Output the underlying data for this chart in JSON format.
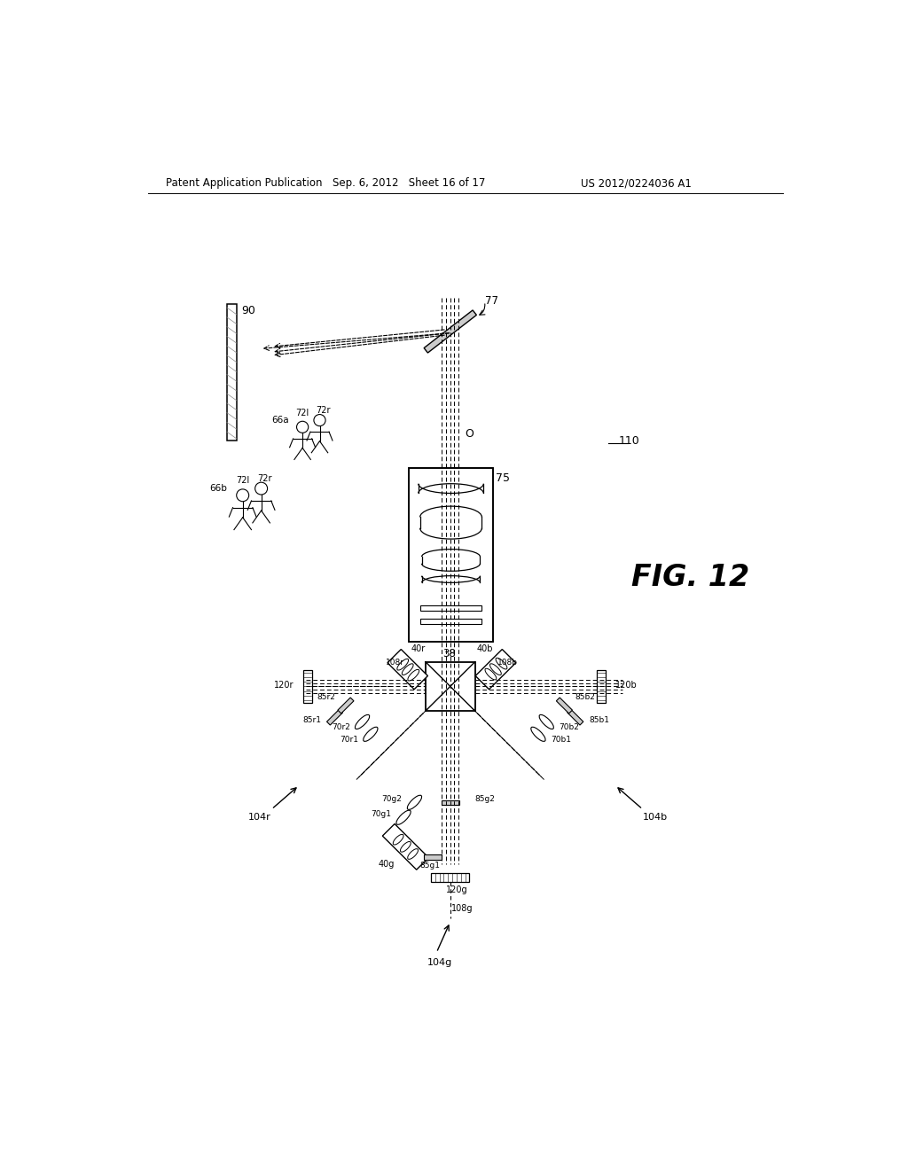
{
  "header_left": "Patent Application Publication",
  "header_center": "Sep. 6, 2012   Sheet 16 of 17",
  "header_right": "US 2012/0224036 A1",
  "fig_label": "FIG. 12",
  "bg_color": "#ffffff",
  "line_color": "#000000"
}
